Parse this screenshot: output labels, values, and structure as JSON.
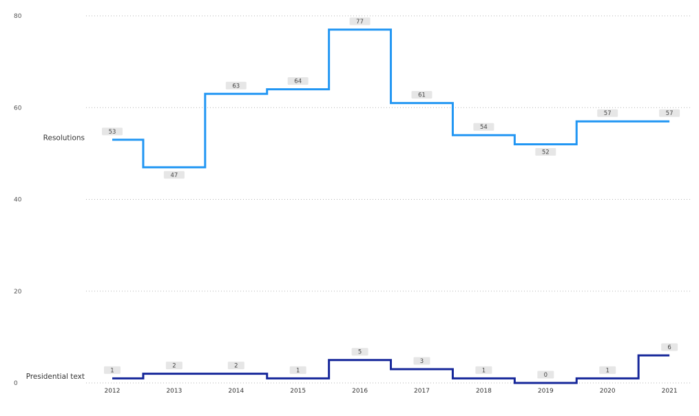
{
  "chart_data": {
    "type": "line",
    "line_style": "step",
    "x": [
      "2012",
      "2013",
      "2014",
      "2015",
      "2016",
      "2017",
      "2018",
      "2019",
      "2020",
      "2021"
    ],
    "series": [
      {
        "name": "Resolutions",
        "values": [
          53,
          47,
          63,
          64,
          77,
          61,
          54,
          52,
          57,
          57
        ],
        "color": "#2196f3"
      },
      {
        "name": "Presidential text",
        "values": [
          1,
          2,
          2,
          1,
          5,
          3,
          1,
          0,
          1,
          6
        ],
        "color": "#16279a"
      }
    ],
    "yticks": [
      "0",
      "20",
      "40",
      "60",
      "80"
    ],
    "ylim": [
      0,
      80
    ],
    "grid": true,
    "data_labels": true,
    "legend": "inline-left"
  }
}
